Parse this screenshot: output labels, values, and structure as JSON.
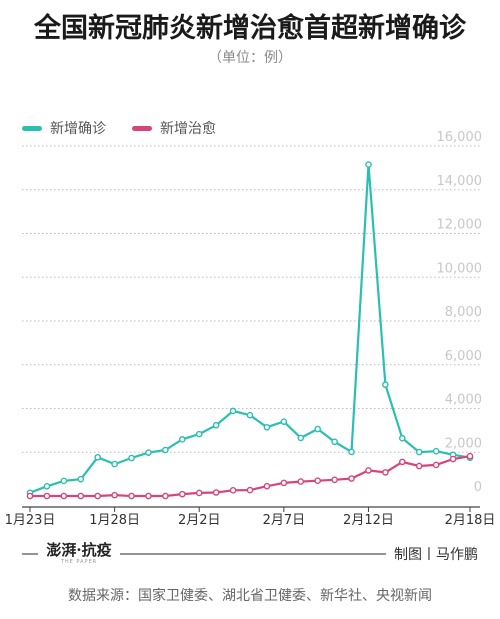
{
  "title": "全国新冠肺炎新增治愈首超新增确诊",
  "subtitle": "（单位：例）",
  "legend": [
    {
      "name": "新增确诊",
      "color": "#2bbfb0"
    },
    {
      "name": "新增治愈",
      "color": "#d6457a"
    }
  ],
  "logo": {
    "main": "澎湃·抗疫",
    "sub": "THE PAPER"
  },
  "credit": "制图丨马作鹏",
  "source": "数据来源：国家卫健委、湖北省卫健委、新华社、央视新闻",
  "colors": {
    "confirmed": "#2bbfb0",
    "cured": "#d6457a",
    "grid": "#bdbdbd",
    "tick": "#c8c8c8"
  },
  "chart_data": {
    "type": "line",
    "categories": [
      "1月23日",
      "1月24日",
      "1月25日",
      "1月26日",
      "1月27日",
      "1月28日",
      "1月29日",
      "1月30日",
      "1月31日",
      "2月1日",
      "2月2日",
      "2月3日",
      "2月4日",
      "2月5日",
      "2月6日",
      "2月7日",
      "2月8日",
      "2月9日",
      "2月10日",
      "2月11日",
      "2月12日",
      "2月13日",
      "2月14日",
      "2月15日",
      "2月16日",
      "2月17日",
      "2月18日"
    ],
    "x_tick_labels": [
      "1月23日",
      "1月28日",
      "2月2日",
      "2月7日",
      "2月12日",
      "2月18日"
    ],
    "x_tick_indices": [
      0,
      5,
      10,
      15,
      20,
      26
    ],
    "series": [
      {
        "name": "新增确诊",
        "values": [
          149,
          444,
          688,
          769,
          1771,
          1459,
          1737,
          1982,
          2102,
          2590,
          2829,
          3235,
          3887,
          3694,
          3143,
          3399,
          2656,
          3062,
          2478,
          2015,
          15152,
          5090,
          2641,
          2009,
          2048,
          1886,
          1749
        ]
      },
      {
        "name": "新增治愈",
        "values": [
          0,
          0,
          0,
          0,
          0,
          40,
          0,
          0,
          0,
          85,
          140,
          160,
          260,
          270,
          450,
          600,
          660,
          700,
          740,
          800,
          1170,
          1080,
          1560,
          1370,
          1420,
          1690,
          1820
        ]
      }
    ],
    "y_ticks": [
      0,
      2000,
      4000,
      6000,
      8000,
      10000,
      12000,
      14000,
      16000
    ],
    "y_tick_labels": [
      "0",
      "2,000",
      "4,000",
      "6,000",
      "8,000",
      "10,000",
      "12,000",
      "14,000",
      "16,000"
    ],
    "ylim": [
      0,
      16000
    ],
    "grid": true,
    "legend_position": "top-left"
  }
}
